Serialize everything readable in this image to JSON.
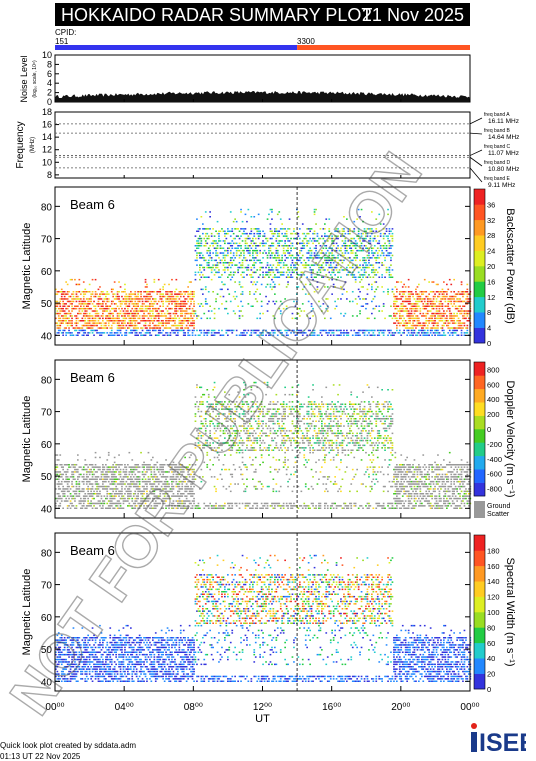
{
  "header": {
    "title": "HOKKAIDO RADAR SUMMARY PLOT",
    "date": "21 Nov 2025"
  },
  "cpid": {
    "label": "CPID:",
    "first": "151",
    "second": "3300",
    "color_first": "#3333ee",
    "color_second": "#ff5522",
    "switch_hour": 14.0
  },
  "chart_data": [
    {
      "type": "area",
      "ylabel": "Noise Level",
      "ylabel_sub": "(log₁₀ scale, 10⁸)",
      "yticks": [
        "0",
        "2",
        "4",
        "6",
        "8",
        "10"
      ],
      "ylim": [
        0,
        10
      ],
      "xlim": [
        0,
        24
      ]
    },
    {
      "type": "line",
      "ylabel": "Frequency",
      "ylabel_sub": "(MHz)",
      "yticks": [
        "8",
        "10",
        "12",
        "14",
        "16",
        "18"
      ],
      "ylim": [
        7.5,
        18
      ],
      "freq_bands": [
        {
          "label": "freq band A",
          "value": "16.11 MHz",
          "mhz": 16.11
        },
        {
          "label": "freq band B",
          "value": "14.64 MHz",
          "mhz": 14.64
        },
        {
          "label": "freq band C",
          "value": "11.07 MHz",
          "mhz": 11.07
        },
        {
          "label": "freq band D",
          "value": "10.80 MHz",
          "mhz": 10.8
        },
        {
          "label": "freq band E",
          "value": "9.11 MHz",
          "mhz": 9.11
        }
      ]
    },
    {
      "type": "heatmap",
      "beam": "Beam  6",
      "ylabel": "Magnetic Latitude",
      "yticks": [
        "40",
        "50",
        "60",
        "70",
        "80"
      ],
      "ylim": [
        37,
        86
      ],
      "colorbar_label": "Backscatter Power (dB)",
      "colorbar_ticks": [
        "0",
        "4",
        "8",
        "12",
        "16",
        "20",
        "24",
        "28",
        "32",
        "36"
      ],
      "colorbar_colors": [
        "#3333dd",
        "#2288ff",
        "#22cccc",
        "#22cc44",
        "#99dd22",
        "#ddee22",
        "#ffcc22",
        "#ff9922",
        "#ff5522",
        "#ee2222"
      ]
    },
    {
      "type": "heatmap",
      "beam": "Beam  6",
      "ylabel": "Magnetic Latitude",
      "yticks": [
        "40",
        "50",
        "60",
        "70",
        "80"
      ],
      "ylim": [
        37,
        86
      ],
      "colorbar_label": "Doppler Velocity (m s⁻¹)",
      "colorbar_ticks": [
        "800",
        "600",
        "400",
        "200",
        "0",
        "-200",
        "-400",
        "-600",
        "-800"
      ],
      "colorbar_colors": [
        "#3333dd",
        "#2266ff",
        "#22aaee",
        "#22cc88",
        "#44cc22",
        "#aadd22",
        "#ffdd22",
        "#ffaa22",
        "#ff6622",
        "#ee2222"
      ],
      "ground_scatter_label": "Ground Scatter"
    },
    {
      "type": "heatmap",
      "beam": "Beam  6",
      "ylabel": "Magnetic Latitude",
      "yticks": [
        "40",
        "50",
        "60",
        "70",
        "80"
      ],
      "ylim": [
        37,
        86
      ],
      "xlabel": "UT",
      "xticks": [
        "00⁰⁰",
        "04⁰⁰",
        "08⁰⁰",
        "12⁰⁰",
        "16⁰⁰",
        "20⁰⁰",
        "00⁰⁰"
      ],
      "xlim": [
        0,
        24
      ],
      "colorbar_label": "Spectral Width (m s⁻¹)",
      "colorbar_ticks": [
        "0",
        "20",
        "40",
        "60",
        "80",
        "100",
        "120",
        "140",
        "160",
        "180"
      ],
      "colorbar_colors": [
        "#3333dd",
        "#2288ff",
        "#22cccc",
        "#22cc44",
        "#99dd22",
        "#ddee22",
        "#ffcc22",
        "#ff9922",
        "#ff5522",
        "#ee2222"
      ]
    }
  ],
  "footer": {
    "credit": "Quick look plot created by sddata.adm",
    "timestamp": "01:13 UT 22 Nov 2025"
  },
  "logo": {
    "text": "ISEE"
  },
  "watermark": {
    "text": "NOT FOR PUBLICATION"
  }
}
